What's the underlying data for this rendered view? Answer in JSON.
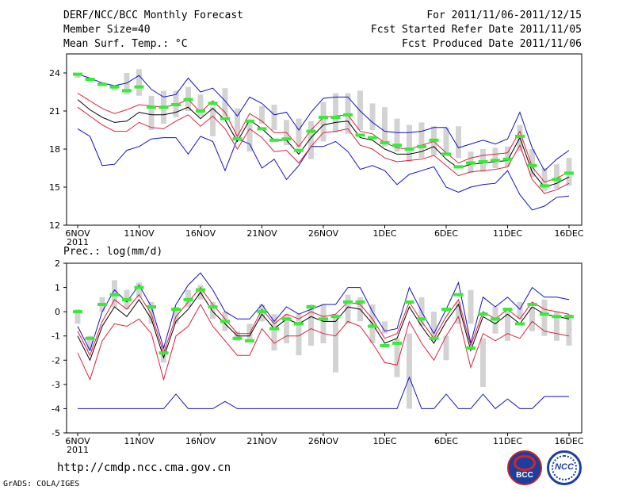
{
  "header": {
    "title": "DERF/NCC/BCC Monthly Forecast",
    "member_size": "Member Size=40",
    "variable": "Mean Surf. Temp.: °C",
    "period": "For 2011/11/06-2011/12/15",
    "refer_date": "Fcst Started Refer Date 2011/11/05",
    "produced_date": "Fcst Produced Date 2011/11/06"
  },
  "footer": {
    "url": "http://cmdp.ncc.cma.gov.cn",
    "grads": "GrADS: COLA/IGES",
    "logo_left": "BCC",
    "logo_right": "NCC"
  },
  "colors": {
    "box": "#d3d3d3",
    "obs": "#33ee33",
    "mean": "#000000",
    "spread": "#e0203a",
    "extreme": "#1010cc"
  },
  "chart_data": [
    {
      "type": "line",
      "title": "Mean Surf. Temp.: °C",
      "year_label": "2011",
      "x_ticks": [
        "6NOV",
        "11NOV",
        "16NOV",
        "21NOV",
        "26NOV",
        "1DEC",
        "6DEC",
        "11DEC",
        "16DEC"
      ],
      "x_range": [
        0,
        40
      ],
      "ylim": [
        12,
        25.5
      ],
      "y_ticks": [
        12,
        15,
        18,
        21,
        24
      ],
      "box_low": [
        23.6,
        23.3,
        23.0,
        22.6,
        22.3,
        22.2,
        19.5,
        20.0,
        20.5,
        21.0,
        20.6,
        19.0,
        20.6,
        18.8,
        17.8,
        20.0,
        19.5,
        18.3,
        18.1,
        17.2,
        18.6,
        19.3,
        19.2,
        19.5,
        19.5,
        18.2,
        17.8,
        17.0,
        17.3,
        17.5,
        17.6,
        17.3,
        16.1,
        16.2,
        16.5,
        16.6,
        17.8,
        15.8,
        14.7,
        14.9,
        15.1
      ],
      "box_high": [
        23.9,
        23.6,
        23.3,
        23.0,
        24.0,
        24.3,
        22.2,
        22.6,
        22.6,
        22.9,
        22.3,
        21.3,
        22.8,
        21.2,
        20.2,
        21.4,
        21.5,
        20.3,
        20.4,
        20.2,
        21.7,
        22.4,
        22.4,
        22.6,
        21.6,
        21.3,
        20.4,
        19.9,
        20.1,
        19.8,
        19.7,
        19.8,
        17.8,
        18.0,
        18.1,
        18.2,
        19.9,
        18.0,
        16.5,
        16.8,
        17.3
      ],
      "observed": [
        23.9,
        23.5,
        23.1,
        22.9,
        22.6,
        22.9,
        21.3,
        21.3,
        21.5,
        21.9,
        21.0,
        21.6,
        20.4,
        18.8,
        20.2,
        19.6,
        18.7,
        18.8,
        17.9,
        19.4,
        20.5,
        20.5,
        20.7,
        19.1,
        18.9,
        18.5,
        18.3,
        18.0,
        18.2,
        18.7,
        17.6,
        16.6,
        16.9,
        17.0,
        17.1,
        17.2,
        19.0,
        16.7,
        15.1,
        15.6,
        16.1
      ],
      "mean": [
        21.9,
        21.1,
        20.5,
        20.1,
        20.2,
        20.9,
        20.7,
        20.7,
        20.9,
        21.3,
        20.4,
        21.2,
        20.3,
        18.6,
        20.3,
        19.6,
        18.7,
        18.7,
        17.6,
        18.9,
        19.9,
        20.1,
        20.2,
        18.9,
        18.7,
        18.0,
        17.6,
        17.6,
        17.8,
        18.2,
        17.2,
        16.5,
        16.8,
        16.9,
        17.0,
        17.1,
        18.9,
        16.2,
        15.0,
        15.3,
        15.8
      ],
      "upper": [
        22.4,
        21.8,
        21.2,
        20.8,
        21.1,
        21.5,
        21.4,
        21.3,
        21.5,
        21.9,
        20.9,
        21.8,
        20.9,
        19.0,
        20.8,
        20.2,
        19.3,
        19.3,
        18.2,
        19.5,
        20.5,
        20.6,
        20.7,
        19.4,
        19.2,
        18.5,
        18.1,
        18.0,
        18.3,
        18.6,
        17.7,
        16.9,
        17.3,
        17.5,
        17.6,
        17.7,
        19.4,
        16.6,
        15.4,
        15.7,
        16.2
      ],
      "lower": [
        21.3,
        20.6,
        19.9,
        19.4,
        19.4,
        20.1,
        19.7,
        19.6,
        20.2,
        20.7,
        19.8,
        20.6,
        19.6,
        18.0,
        19.6,
        18.9,
        17.8,
        17.9,
        16.9,
        18.2,
        19.3,
        19.4,
        19.6,
        18.3,
        18.0,
        17.3,
        17.0,
        17.1,
        17.2,
        17.5,
        16.7,
        15.9,
        16.2,
        16.3,
        16.4,
        16.6,
        18.3,
        15.6,
        14.5,
        14.8,
        15.3
      ],
      "max": [
        23.9,
        23.6,
        23.2,
        23.0,
        23.2,
        23.8,
        22.7,
        22.1,
        22.3,
        23.6,
        22.5,
        22.8,
        21.8,
        20.6,
        22.1,
        21.6,
        20.7,
        20.9,
        19.5,
        20.9,
        22.0,
        22.1,
        22.1,
        21.0,
        20.1,
        19.4,
        19.3,
        19.3,
        19.4,
        19.7,
        19.7,
        18.1,
        18.4,
        18.7,
        18.4,
        18.8,
        20.9,
        18.1,
        16.3,
        17.2,
        17.9
      ],
      "min": [
        19.6,
        19.0,
        16.7,
        16.8,
        17.9,
        18.2,
        18.8,
        18.9,
        18.9,
        17.6,
        19.0,
        18.6,
        16.3,
        18.8,
        18.4,
        16.5,
        17.2,
        15.6,
        16.7,
        18.2,
        18.2,
        18.6,
        17.8,
        16.4,
        16.7,
        16.3,
        15.2,
        16.0,
        16.3,
        16.6,
        15.0,
        14.6,
        15.0,
        15.2,
        15.3,
        16.3,
        14.4,
        13.2,
        13.5,
        14.2,
        14.3
      ]
    },
    {
      "type": "line",
      "title": "Prec.: log(mm/d)",
      "year_label": "2011",
      "x_ticks": [
        "6NOV",
        "11NOV",
        "16NOV",
        "21NOV",
        "26NOV",
        "1DEC",
        "6DEC",
        "11DEC",
        "16DEC"
      ],
      "x_range": [
        0,
        40
      ],
      "ylim": [
        -5,
        2
      ],
      "y_ticks": [
        -5,
        -4,
        -3,
        -2,
        -1,
        0,
        1,
        2
      ],
      "box_low": [
        -0.5,
        -1.6,
        0.0,
        0.2,
        0.1,
        0.6,
        -0.5,
        -2.1,
        -0.5,
        0.2,
        0.5,
        -0.3,
        -0.8,
        -1.2,
        -1.2,
        -0.4,
        -1.6,
        -1.3,
        -1.8,
        -1.4,
        -1.3,
        -2.5,
        -0.5,
        -0.4,
        -1.3,
        -0.9,
        -2.7,
        -4.0,
        -0.6,
        -1.2,
        -2.0,
        -0.5,
        -0.5,
        -3.1,
        -0.9,
        -1.2,
        -0.3,
        -0.8,
        -1.0,
        -1.2,
        -1.4
      ],
      "box_high": [
        0.1,
        -1.0,
        0.6,
        1.3,
        0.9,
        1.2,
        0.4,
        -1.4,
        0.2,
        0.9,
        1.1,
        0.4,
        0.0,
        -0.8,
        -0.5,
        0.3,
        -0.1,
        -0.1,
        -0.1,
        0.3,
        0.3,
        -0.1,
        0.7,
        0.6,
        0.3,
        -0.4,
        -1.1,
        -0.9,
        0.6,
        0.0,
        -1.0,
        0.4,
        0.9,
        -1.1,
        0.2,
        0.1,
        0.4,
        0.2,
        0.5,
        0.0,
        -0.1
      ],
      "observed": [
        0.0,
        -1.1,
        0.3,
        0.7,
        0.5,
        1.0,
        0.2,
        -1.7,
        0.1,
        0.5,
        0.9,
        0.2,
        -0.4,
        -1.1,
        -1.2,
        0.0,
        -0.7,
        -0.3,
        -0.5,
        0.2,
        -0.3,
        -0.2,
        0.4,
        0.4,
        -0.6,
        -1.4,
        -1.3,
        0.4,
        -0.3,
        -1.1,
        0.1,
        0.7,
        -1.5,
        -0.1,
        -0.3,
        0.1,
        -0.5,
        0.3,
        -0.1,
        -0.2,
        -0.2
      ],
      "mean": [
        -1.0,
        -2.0,
        -0.6,
        0.2,
        -0.2,
        0.5,
        -0.3,
        -1.9,
        -0.4,
        0.1,
        0.8,
        0.0,
        -0.5,
        -1.0,
        -1.0,
        -0.1,
        -0.7,
        -0.3,
        -0.5,
        -0.2,
        -0.4,
        -0.4,
        0.2,
        0.1,
        -0.5,
        -1.3,
        -1.1,
        0.2,
        -0.6,
        -1.3,
        -0.4,
        0.3,
        -1.6,
        -0.2,
        -0.5,
        -0.1,
        -0.5,
        0.2,
        -0.1,
        -0.2,
        -0.3
      ],
      "upper": [
        -0.8,
        -1.8,
        -0.4,
        0.5,
        0.1,
        0.7,
        -0.1,
        -1.7,
        -0.2,
        0.4,
        1.0,
        0.3,
        -0.3,
        -0.9,
        -0.9,
        0.1,
        -0.5,
        -0.1,
        -0.3,
        0.0,
        -0.2,
        -0.1,
        0.4,
        0.3,
        -0.3,
        -1.1,
        -0.9,
        0.4,
        -0.4,
        -1.1,
        -0.2,
        0.5,
        -1.4,
        0.0,
        -0.3,
        0.1,
        -0.3,
        0.4,
        0.1,
        0.0,
        -0.1
      ],
      "lower": [
        -1.7,
        -2.8,
        -1.2,
        -0.5,
        -0.6,
        -0.3,
        -0.9,
        -2.8,
        -1.0,
        -0.6,
        0.3,
        -0.6,
        -1.2,
        -1.8,
        -1.8,
        -0.7,
        -1.3,
        -1.0,
        -1.0,
        -0.7,
        -0.9,
        -1.0,
        -0.4,
        -0.6,
        -1.3,
        -2.1,
        -2.2,
        -0.4,
        -1.3,
        -2.0,
        -1.0,
        -0.2,
        -2.3,
        -0.9,
        -1.2,
        -0.9,
        -1.1,
        -0.4,
        -0.8,
        -0.9,
        -1.0
      ],
      "max": [
        -0.6,
        -1.6,
        0.0,
        0.9,
        0.4,
        1.1,
        0.2,
        -1.5,
        0.3,
        1.1,
        1.6,
        0.9,
        0.0,
        -0.3,
        -0.3,
        0.3,
        -0.4,
        0.2,
        -0.1,
        0.1,
        0.3,
        0.3,
        1.0,
        1.0,
        0.0,
        -0.8,
        -0.7,
        1.0,
        0.0,
        -0.9,
        0.1,
        1.2,
        -1.3,
        0.6,
        0.2,
        0.6,
        0.1,
        1.0,
        0.6,
        0.6,
        0.5
      ],
      "min": [
        -4.0,
        -4.0,
        -4.0,
        -4.0,
        -4.0,
        -4.0,
        -4.0,
        -4.0,
        -3.4,
        -4.0,
        -4.0,
        -4.0,
        -3.7,
        -4.0,
        -4.0,
        -4.0,
        -4.0,
        -4.0,
        -4.0,
        -4.0,
        -4.0,
        -4.0,
        -4.0,
        -4.0,
        -4.0,
        -4.0,
        -4.0,
        -2.7,
        -4.0,
        -4.0,
        -3.4,
        -4.0,
        -4.0,
        -3.4,
        -4.0,
        -3.6,
        -4.0,
        -4.0,
        -3.5,
        -3.5,
        -3.5
      ]
    }
  ]
}
